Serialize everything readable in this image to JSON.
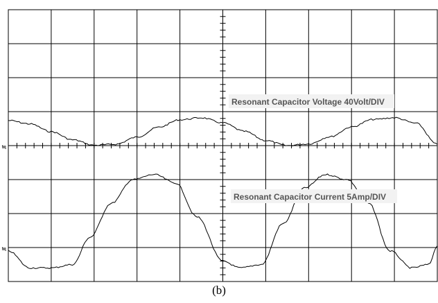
{
  "caption": "(b)",
  "annotations": {
    "voltage": "Resonant Capacitor Voltage 40Volt/DIV",
    "current": "Resonant Capacitor Current 5Amp/DIV"
  },
  "colors": {
    "background": "#ffffff",
    "grid": "#000000",
    "trace": "#000000",
    "label_box": "#f2f2f2",
    "label_text": "#555555"
  },
  "chart_data": {
    "type": "line",
    "title": "",
    "xlabel": "",
    "ylabel": "",
    "grid": true,
    "x_unit": "divisions",
    "xlim": [
      0,
      10
    ],
    "ylim": [
      -4,
      4
    ],
    "series": [
      {
        "name": "Resonant Capacitor Voltage 40Volt/DIV",
        "x": [
          0,
          0.5,
          1.0,
          1.5,
          2.0,
          2.5,
          3.0,
          3.5,
          4.0,
          4.5,
          5.0,
          5.5,
          6.0,
          6.5,
          7.0,
          7.5,
          8.0,
          8.5,
          9.0,
          9.5,
          10.0
        ],
        "y": [
          0.74,
          0.64,
          0.41,
          0.17,
          0.01,
          0.04,
          0.25,
          0.54,
          0.76,
          0.82,
          0.67,
          0.42,
          0.15,
          0.0,
          0.05,
          0.26,
          0.55,
          0.77,
          0.82,
          0.66,
          0.04
        ]
      },
      {
        "name": "Resonant Capacitor Current 5Amp/DIV",
        "x": [
          0,
          0.5,
          1.0,
          1.5,
          1.9,
          2.4,
          2.9,
          3.4,
          3.9,
          4.4,
          5.0,
          5.4,
          5.9,
          6.4,
          6.9,
          7.4,
          7.9,
          8.4,
          8.9,
          9.4,
          9.8,
          10.0
        ],
        "y": [
          -3.1,
          -3.6,
          -3.6,
          -3.5,
          -2.7,
          -1.7,
          -1.0,
          -0.85,
          -1.1,
          -2.1,
          -3.4,
          -3.6,
          -3.5,
          -2.3,
          -1.25,
          -0.85,
          -1.0,
          -1.7,
          -3.1,
          -3.6,
          -3.5,
          -2.95
        ]
      }
    ]
  }
}
